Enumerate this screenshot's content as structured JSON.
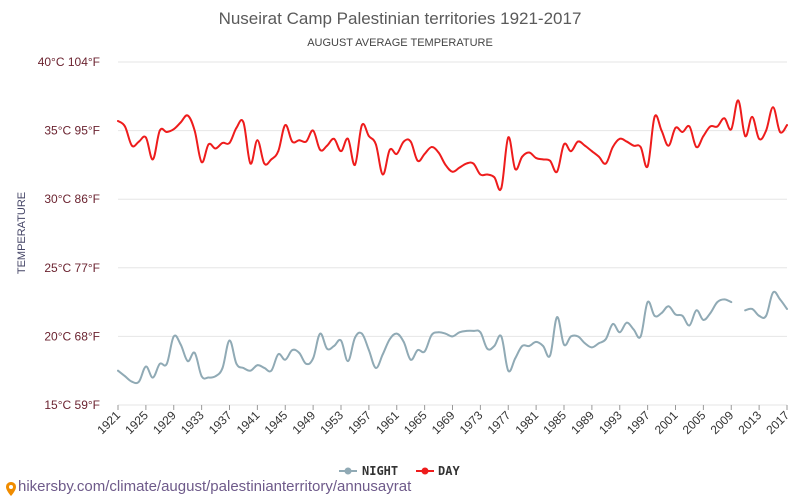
{
  "footer": {
    "text": "hikersby.com/climate/august/palestinianterritory/annusayrat"
  },
  "colors": {
    "night": "#90aab5",
    "day": "#ee1c1c",
    "pin": "#f08c00",
    "grid": "#e6e6e6"
  },
  "chart_data": {
    "type": "line",
    "title": "Nuseirat Camp Palestinian territories 1921-2017",
    "subtitle": "AUGUST AVERAGE TEMPERATURE",
    "ylabel": "TEMPERATURE",
    "xlabel": "",
    "ylim": [
      15,
      40
    ],
    "xlim": [
      1921,
      2017
    ],
    "grid": true,
    "legend_position": "bottom",
    "y_ticks": [
      {
        "value": 40,
        "label": "40°C 104°F"
      },
      {
        "value": 35,
        "label": "35°C 95°F"
      },
      {
        "value": 30,
        "label": "30°C 86°F"
      },
      {
        "value": 25,
        "label": "25°C 77°F"
      },
      {
        "value": 20,
        "label": "20°C 68°F"
      },
      {
        "value": 15,
        "label": "15°C 59°F"
      }
    ],
    "x_ticks": [
      "1921",
      "1925",
      "1929",
      "1933",
      "1937",
      "1941",
      "1945",
      "1949",
      "1953",
      "1957",
      "1961",
      "1965",
      "1969",
      "1973",
      "1977",
      "1981",
      "1985",
      "1989",
      "1993",
      "1997",
      "2001",
      "2005",
      "2009",
      "2013",
      "2017"
    ],
    "x": [
      1921,
      1922,
      1923,
      1924,
      1925,
      1926,
      1927,
      1928,
      1929,
      1930,
      1931,
      1932,
      1933,
      1934,
      1935,
      1936,
      1937,
      1938,
      1939,
      1940,
      1941,
      1942,
      1943,
      1944,
      1945,
      1946,
      1947,
      1948,
      1949,
      1950,
      1951,
      1952,
      1953,
      1954,
      1955,
      1956,
      1957,
      1958,
      1959,
      1960,
      1961,
      1962,
      1963,
      1964,
      1965,
      1966,
      1967,
      1968,
      1969,
      1970,
      1971,
      1972,
      1973,
      1974,
      1975,
      1976,
      1977,
      1978,
      1979,
      1980,
      1981,
      1982,
      1983,
      1984,
      1985,
      1986,
      1987,
      1988,
      1989,
      1990,
      1991,
      1992,
      1993,
      1994,
      1995,
      1996,
      1997,
      1998,
      1999,
      2000,
      2001,
      2002,
      2003,
      2004,
      2005,
      2006,
      2007,
      2008,
      2009,
      2010,
      2011,
      2012,
      2013,
      2014,
      2015,
      2016,
      2017
    ],
    "series": [
      {
        "name": "NIGHT",
        "color": "#90aab5",
        "values": [
          17.5,
          17.1,
          16.7,
          16.7,
          17.8,
          17.0,
          18.0,
          18.0,
          20.0,
          19.4,
          18.2,
          18.8,
          17.1,
          17.0,
          17.1,
          17.7,
          19.7,
          18.0,
          17.7,
          17.5,
          17.9,
          17.7,
          17.5,
          18.7,
          18.3,
          19.0,
          18.8,
          18.0,
          18.4,
          20.2,
          19.1,
          19.3,
          19.7,
          18.2,
          19.9,
          20.2,
          19.0,
          17.7,
          18.7,
          19.8,
          20.2,
          19.6,
          18.3,
          19.0,
          18.9,
          20.1,
          20.3,
          20.2,
          20.0,
          20.3,
          20.4,
          20.4,
          20.3,
          19.1,
          19.3,
          20.0,
          17.5,
          18.4,
          19.3,
          19.3,
          19.6,
          19.3,
          18.6,
          21.4,
          19.4,
          20.0,
          20.0,
          19.5,
          19.2,
          19.5,
          19.8,
          20.9,
          20.3,
          21.0,
          20.5,
          20.0,
          22.5,
          21.5,
          21.7,
          22.2,
          21.6,
          21.5,
          20.8,
          21.9,
          21.2,
          21.7,
          22.5,
          22.7,
          22.5,
          null,
          21.9,
          22.0,
          21.5,
          21.5,
          23.2,
          22.7,
          22.0
        ]
      },
      {
        "name": "DAY",
        "color": "#ee1c1c",
        "values": [
          35.7,
          35.3,
          33.9,
          34.2,
          34.5,
          32.9,
          35.0,
          34.9,
          35.1,
          35.6,
          36.1,
          35.0,
          32.7,
          34.0,
          33.7,
          34.1,
          34.1,
          35.2,
          35.6,
          32.6,
          34.3,
          32.6,
          32.9,
          33.5,
          35.4,
          34.2,
          34.3,
          34.2,
          35.0,
          33.6,
          33.9,
          34.4,
          33.5,
          34.4,
          32.5,
          35.4,
          34.6,
          34.0,
          31.8,
          33.6,
          33.3,
          34.2,
          34.2,
          32.8,
          33.3,
          33.8,
          33.4,
          32.5,
          32.0,
          32.3,
          32.6,
          32.6,
          31.8,
          31.8,
          31.6,
          30.8,
          34.5,
          32.2,
          33.1,
          33.4,
          33.0,
          32.9,
          32.8,
          32.0,
          34.0,
          33.5,
          34.2,
          33.9,
          33.5,
          33.1,
          32.6,
          33.8,
          34.4,
          34.2,
          33.9,
          33.8,
          32.4,
          36.0,
          35.0,
          33.9,
          35.2,
          34.9,
          35.3,
          33.8,
          34.6,
          35.3,
          35.3,
          35.9,
          35.1,
          37.2,
          34.6,
          36.0,
          34.4,
          35.0,
          36.7,
          34.9,
          35.4
        ]
      }
    ]
  }
}
